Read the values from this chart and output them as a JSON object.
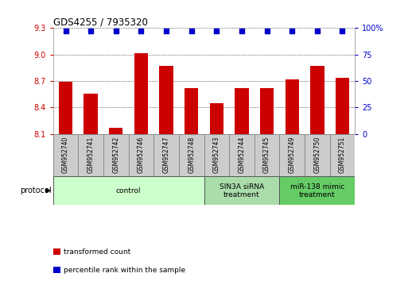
{
  "title": "GDS4255 / 7935320",
  "samples": [
    "GSM952740",
    "GSM952741",
    "GSM952742",
    "GSM952746",
    "GSM952747",
    "GSM952748",
    "GSM952743",
    "GSM952744",
    "GSM952745",
    "GSM952749",
    "GSM952750",
    "GSM952751"
  ],
  "bar_values": [
    8.69,
    8.56,
    8.17,
    9.02,
    8.87,
    8.62,
    8.45,
    8.62,
    8.62,
    8.72,
    8.87,
    8.74
  ],
  "percentile_values": [
    97,
    97,
    97,
    97,
    97,
    97,
    97,
    97,
    97,
    97,
    97,
    97
  ],
  "bar_color": "#cc0000",
  "dot_color": "#0000cc",
  "ylim_left": [
    8.1,
    9.3
  ],
  "ylim_right": [
    0,
    100
  ],
  "yticks_left": [
    8.1,
    8.4,
    8.7,
    9.0,
    9.3
  ],
  "yticks_right": [
    0,
    25,
    50,
    75,
    100
  ],
  "groups": [
    {
      "label": "control",
      "start": 0,
      "end": 6,
      "color": "#ccffcc"
    },
    {
      "label": "SIN3A siRNA\ntreatment",
      "start": 6,
      "end": 9,
      "color": "#aaddaa"
    },
    {
      "label": "miR-138 mimic\ntreatment",
      "start": 9,
      "end": 12,
      "color": "#66cc66"
    }
  ],
  "protocol_label": "protocol",
  "legend_items": [
    {
      "color": "#cc0000",
      "label": "transformed count"
    },
    {
      "color": "#0000cc",
      "label": "percentile rank within the sample"
    }
  ],
  "grid_color": "#000000",
  "bg_color": "#ffffff",
  "tick_label_color_left": "#cc0000",
  "tick_label_color_right": "#0000cc",
  "bar_width": 0.55,
  "sample_box_color": "#cccccc",
  "sample_box_border": "#888888"
}
